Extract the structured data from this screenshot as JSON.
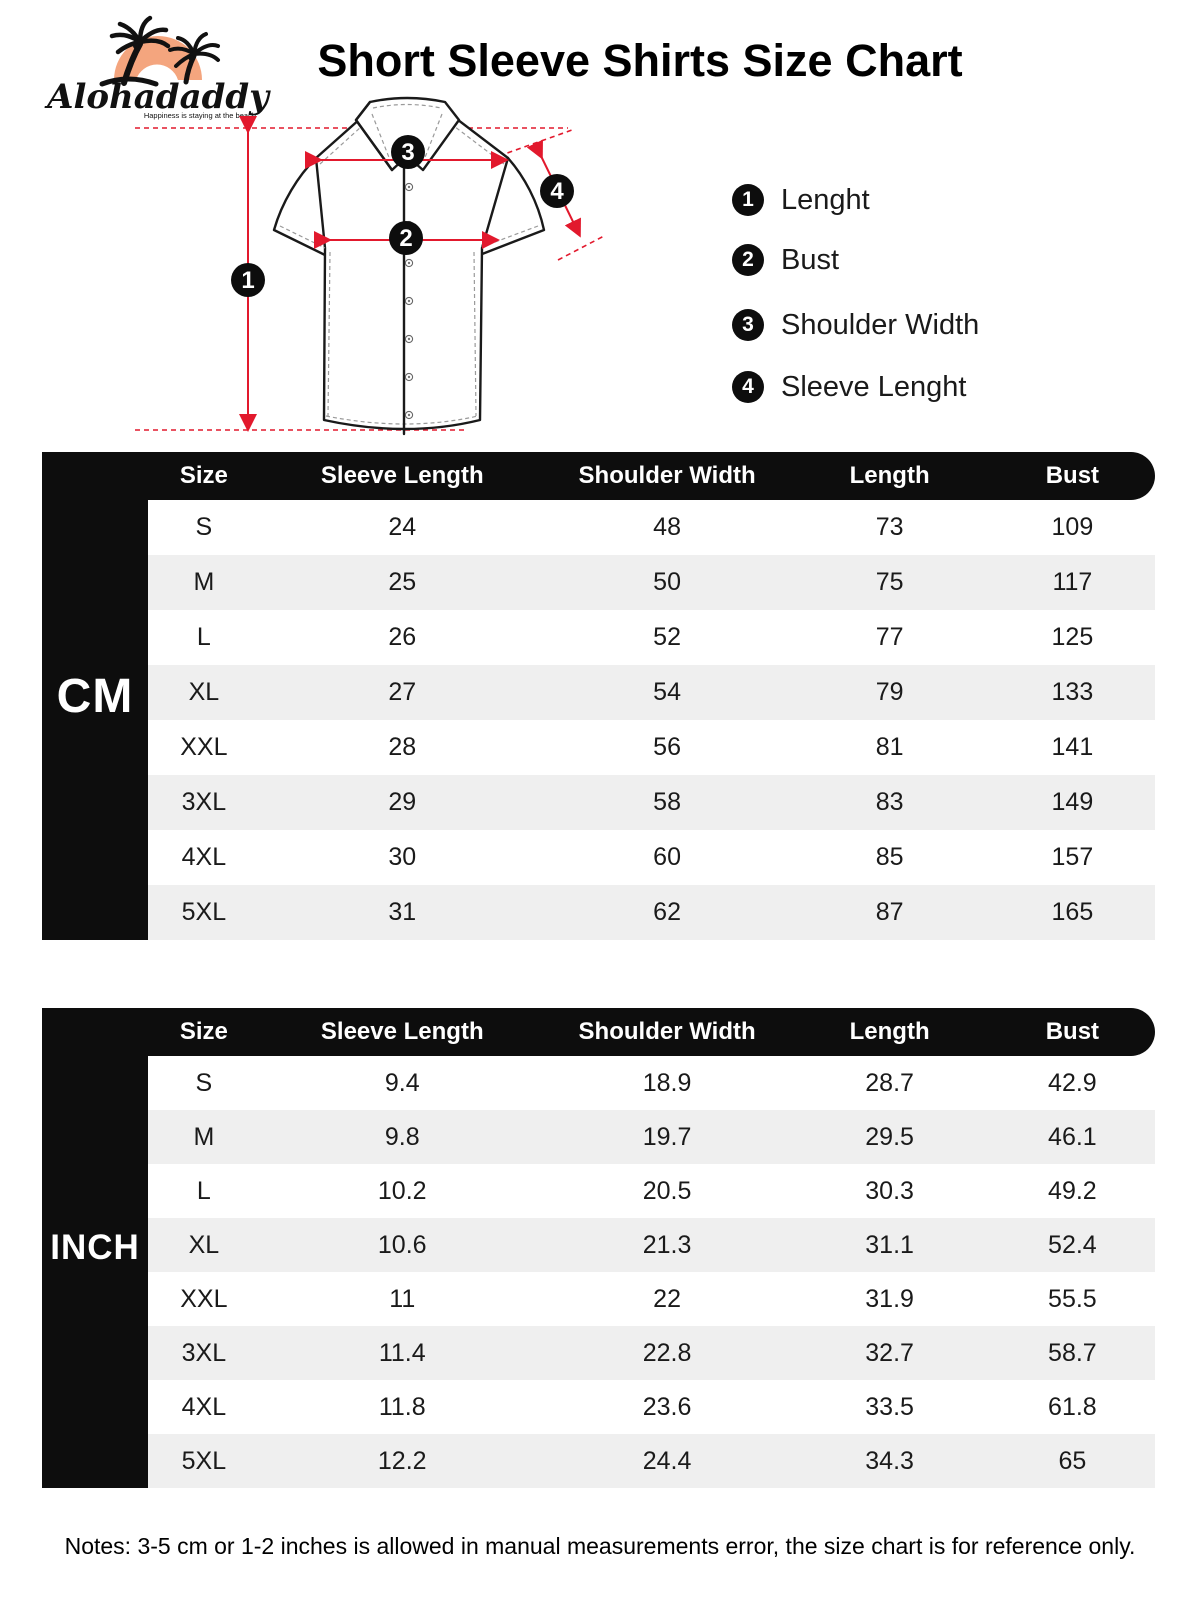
{
  "brand": {
    "name": "Alohadaddy",
    "tagline": "Happiness is staying at the beach"
  },
  "title": "Short Sleeve Shirts Size Chart",
  "legend": [
    {
      "num": "1",
      "label": "Lenght"
    },
    {
      "num": "2",
      "label": "Bust"
    },
    {
      "num": "3",
      "label": "Shoulder Width"
    },
    {
      "num": "4",
      "label": "Sleeve Lenght"
    }
  ],
  "tables": [
    {
      "unit": "CM",
      "columns": [
        "Size",
        "Sleeve Length",
        "Shoulder Width",
        "Length",
        "Bust"
      ],
      "rows": [
        [
          "S",
          "24",
          "48",
          "73",
          "109"
        ],
        [
          "M",
          "25",
          "50",
          "75",
          "117"
        ],
        [
          "L",
          "26",
          "52",
          "77",
          "125"
        ],
        [
          "XL",
          "27",
          "54",
          "79",
          "133"
        ],
        [
          "XXL",
          "28",
          "56",
          "81",
          "141"
        ],
        [
          "3XL",
          "29",
          "58",
          "83",
          "149"
        ],
        [
          "4XL",
          "30",
          "60",
          "85",
          "157"
        ],
        [
          "5XL",
          "31",
          "62",
          "87",
          "165"
        ]
      ]
    },
    {
      "unit": "INCH",
      "columns": [
        "Size",
        "Sleeve Length",
        "Shoulder Width",
        "Length",
        "Bust"
      ],
      "rows": [
        [
          "S",
          "9.4",
          "18.9",
          "28.7",
          "42.9"
        ],
        [
          "M",
          "9.8",
          "19.7",
          "29.5",
          "46.1"
        ],
        [
          "L",
          "10.2",
          "20.5",
          "30.3",
          "49.2"
        ],
        [
          "XL",
          "10.6",
          "21.3",
          "31.1",
          "52.4"
        ],
        [
          "XXL",
          "11",
          "22",
          "31.9",
          "55.5"
        ],
        [
          "3XL",
          "11.4",
          "22.8",
          "32.7",
          "58.7"
        ],
        [
          "4XL",
          "11.8",
          "23.6",
          "33.5",
          "61.8"
        ],
        [
          "5XL",
          "12.2",
          "24.4",
          "34.3",
          "65"
        ]
      ]
    }
  ],
  "notes": "Notes: 3-5 cm or 1-2 inches is allowed in manual measurements error, the size chart is for reference only.",
  "colors": {
    "accent_red": "#e2192d",
    "logo_orange": "#f4a57e",
    "row_alt": "#efefef",
    "table_black": "#0d0d0d"
  }
}
